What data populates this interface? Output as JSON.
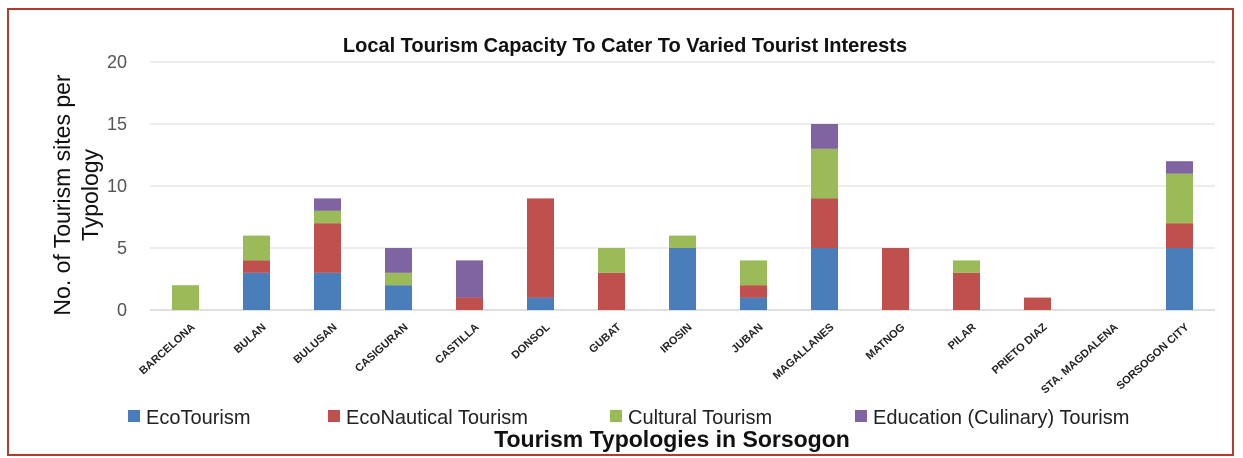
{
  "chart_data": {
    "type": "bar",
    "stacked": true,
    "title": "Local Tourism Capacity To Cater To Varied Tourist Interests",
    "xlabel": "Tourism Typologies in Sorsogon",
    "ylabel": "No. of Tourism sites per Typology",
    "ylim": [
      0,
      20
    ],
    "yticks": [
      0,
      5,
      10,
      15,
      20
    ],
    "grid": true,
    "legend": "bottom",
    "categories": [
      "BARCELONA",
      "BULAN",
      "BULUSAN",
      "CASIGURAN",
      "CASTILLA",
      "DONSOL",
      "GUBAT",
      "IROSIN",
      "JUBAN",
      "MAGALLANES",
      "MATNOG",
      "PILAR",
      "PRIETO DIAZ",
      "STA. MAGDALENA",
      "SORSOGON CITY"
    ],
    "series": [
      {
        "name": "EcoTourism",
        "color": "#4a7ebb",
        "values": [
          0,
          3,
          3,
          2,
          0,
          1,
          0,
          5,
          1,
          5,
          0,
          0,
          0,
          0,
          5
        ]
      },
      {
        "name": "EcoNautical Tourism",
        "color": "#c0504d",
        "values": [
          0,
          1,
          4,
          0,
          1,
          8,
          3,
          0,
          1,
          4,
          5,
          3,
          1,
          0,
          2
        ]
      },
      {
        "name": "Cultural Tourism",
        "color": "#9bbb59",
        "values": [
          2,
          2,
          1,
          1,
          0,
          0,
          2,
          1,
          2,
          4,
          0,
          1,
          0,
          0,
          4
        ]
      },
      {
        "name": "Education (Culinary)  Tourism",
        "color": "#8064a2",
        "values": [
          0,
          0,
          1,
          2,
          3,
          0,
          0,
          0,
          0,
          2,
          0,
          0,
          0,
          0,
          1
        ]
      }
    ]
  }
}
